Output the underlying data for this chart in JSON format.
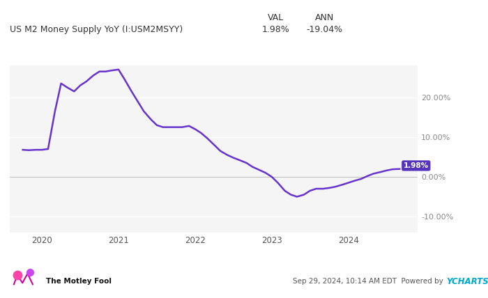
{
  "title_left": "US M2 Money Supply YoY (I:USM2MSYY)",
  "title_val_label": "VAL",
  "title_ann_label": "ANN",
  "title_val": "1.98%",
  "title_ann": "-19.04%",
  "line_color": "#6633cc",
  "line_width": 1.8,
  "background_color": "#ffffff",
  "plot_bg_color": "#f5f5f5",
  "grid_color": "#ffffff",
  "ytick_values": [
    -10,
    0,
    10,
    20
  ],
  "ylim": [
    -14,
    28
  ],
  "xlim_min": 2019.58,
  "xlim_max": 2024.9,
  "xtick_labels": [
    "2020",
    "2021",
    "2022",
    "2023",
    "2024"
  ],
  "xtick_positions": [
    2020,
    2021,
    2022,
    2023,
    2024
  ],
  "label_box_color": "#5533bb",
  "label_text_color": "#ffffff",
  "label_value": "1.98%",
  "footer_left": "The Motley Fool",
  "footer_center": "Sep 29, 2024, 10:14 AM EDT  Powered by ",
  "footer_ycharts": "YCHARTS",
  "ycharts_color": "#00aacc",
  "data_x": [
    2019.75,
    2019.83,
    2019.92,
    2020.0,
    2020.08,
    2020.17,
    2020.25,
    2020.33,
    2020.42,
    2020.5,
    2020.58,
    2020.67,
    2020.75,
    2020.83,
    2020.92,
    2021.0,
    2021.08,
    2021.17,
    2021.25,
    2021.33,
    2021.42,
    2021.5,
    2021.58,
    2021.67,
    2021.75,
    2021.83,
    2021.92,
    2022.0,
    2022.08,
    2022.17,
    2022.25,
    2022.33,
    2022.42,
    2022.5,
    2022.58,
    2022.67,
    2022.75,
    2022.83,
    2022.92,
    2023.0,
    2023.08,
    2023.17,
    2023.25,
    2023.33,
    2023.42,
    2023.5,
    2023.58,
    2023.67,
    2023.75,
    2023.83,
    2023.92,
    2024.0,
    2024.08,
    2024.17,
    2024.25,
    2024.33,
    2024.42,
    2024.5,
    2024.58,
    2024.67
  ],
  "data_y": [
    6.8,
    6.7,
    6.8,
    6.8,
    7.0,
    16.5,
    23.5,
    22.5,
    21.5,
    23.0,
    24.0,
    25.5,
    26.5,
    26.5,
    26.8,
    27.0,
    24.5,
    21.5,
    19.0,
    16.5,
    14.5,
    13.0,
    12.5,
    12.5,
    12.5,
    12.5,
    12.8,
    12.0,
    11.0,
    9.5,
    8.0,
    6.5,
    5.5,
    4.8,
    4.2,
    3.5,
    2.5,
    1.8,
    1.0,
    0.0,
    -1.5,
    -3.5,
    -4.5,
    -5.0,
    -4.5,
    -3.5,
    -3.0,
    -3.0,
    -2.8,
    -2.5,
    -2.0,
    -1.5,
    -1.0,
    -0.5,
    0.2,
    0.8,
    1.2,
    1.6,
    1.9,
    1.98
  ]
}
